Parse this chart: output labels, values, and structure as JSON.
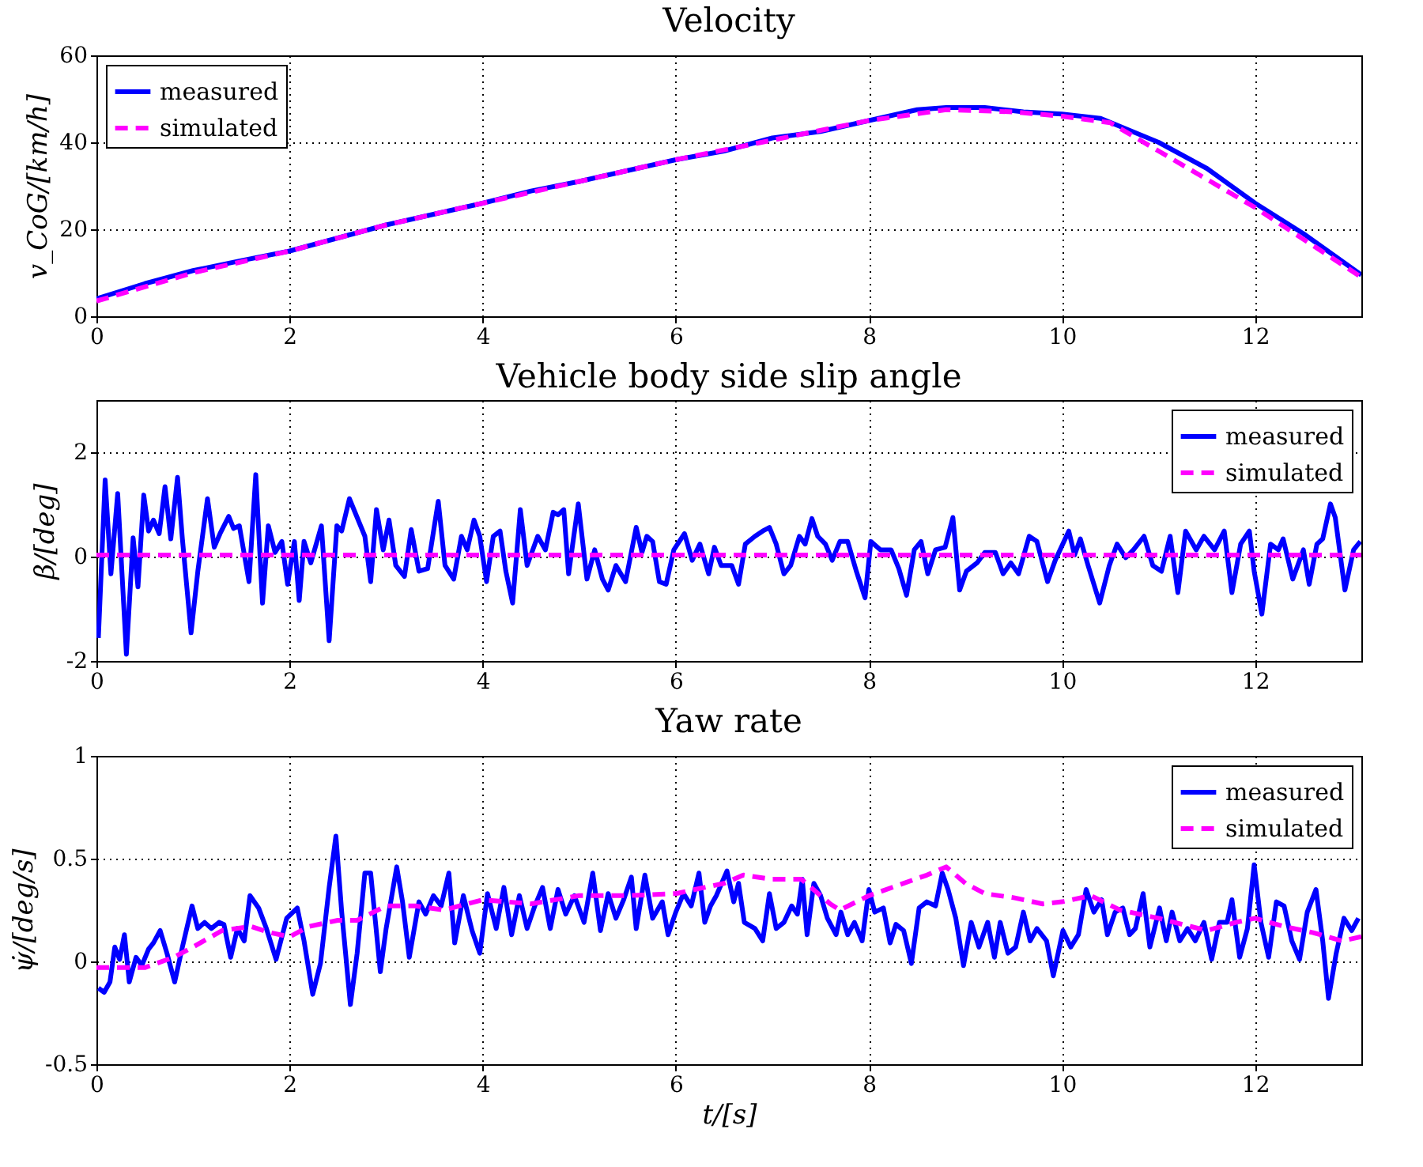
{
  "chart_data": [
    {
      "type": "line",
      "title": "Velocity",
      "ylabel": "v_CoG/[km/h]",
      "xlim": [
        0,
        13.1
      ],
      "xticks": [
        0,
        2,
        4,
        6,
        8,
        10,
        12
      ],
      "ylim": [
        0,
        60
      ],
      "yticks": [
        0,
        20,
        40,
        60
      ],
      "grid": true,
      "legend": "top left",
      "marker": "none",
      "series": [
        {
          "name": "measured",
          "color": "#0000ff",
          "line_style": "solid",
          "x": [
            0,
            0.5,
            1,
            1.5,
            2,
            2.5,
            3,
            3.5,
            4,
            4.5,
            5,
            5.5,
            6,
            6.5,
            7,
            7.5,
            8,
            8.5,
            8.8,
            9.2,
            9.6,
            10,
            10.4,
            11,
            11.5,
            12,
            12.5,
            13.1
          ],
          "values": [
            4,
            7.5,
            10.5,
            12.8,
            15,
            18,
            21,
            23.5,
            26,
            28.8,
            31,
            33.5,
            36,
            38,
            41,
            42.5,
            45,
            47.5,
            48,
            48,
            47,
            46.5,
            45.5,
            40,
            34,
            26,
            19,
            9.5
          ]
        },
        {
          "name": "simulated",
          "color": "#ff00ff",
          "line_style": "dashed",
          "x": [
            0,
            1,
            2,
            3,
            4,
            5,
            6,
            7,
            8,
            8.8,
            9.5,
            10,
            10.5,
            11,
            12,
            13.1
          ],
          "values": [
            3.5,
            10,
            15,
            21,
            26,
            31,
            36,
            40.5,
            45,
            47.5,
            47,
            46,
            44.5,
            38,
            25,
            9
          ]
        }
      ]
    },
    {
      "type": "line",
      "title": "Vehicle body side slip angle",
      "ylabel": "β/[deg]",
      "xlim": [
        0,
        13.1
      ],
      "xticks": [
        0,
        2,
        4,
        6,
        8,
        10,
        12
      ],
      "ylim": [
        -2,
        3
      ],
      "yticks": [
        -2,
        0,
        2
      ],
      "grid": true,
      "legend": "top right",
      "marker": "none",
      "series": [
        {
          "name": "measured",
          "color": "#0000ff",
          "line_style": "solid",
          "x": [
            0.02,
            0.09,
            0.15,
            0.22,
            0.31,
            0.38,
            0.43,
            0.49,
            0.54,
            0.59,
            0.65,
            0.71,
            0.77,
            0.84,
            0.89,
            0.98,
            1.05,
            1.15,
            1.22,
            1.28,
            1.37,
            1.42,
            1.48,
            1.58,
            1.65,
            1.72,
            1.78,
            1.85,
            1.92,
            1.98,
            2.05,
            2.1,
            2.15,
            2.22,
            2.33,
            2.41,
            2.49,
            2.54,
            2.62,
            2.7,
            2.78,
            2.84,
            2.9,
            2.97,
            3.03,
            3.1,
            3.19,
            3.26,
            3.34,
            3.43,
            3.54,
            3.61,
            3.7,
            3.78,
            3.84,
            3.91,
            3.97,
            4.04,
            4.11,
            4.18,
            4.24,
            4.31,
            4.39,
            4.46,
            4.57,
            4.65,
            4.73,
            4.78,
            4.84,
            4.89,
            4.99,
            5.08,
            5.16,
            5.24,
            5.3,
            5.38,
            5.48,
            5.59,
            5.65,
            5.7,
            5.76,
            5.83,
            5.9,
            5.98,
            6.09,
            6.17,
            6.25,
            6.34,
            6.4,
            6.47,
            6.58,
            6.65,
            6.72,
            6.82,
            6.9,
            6.97,
            7.04,
            7.12,
            7.19,
            7.28,
            7.34,
            7.41,
            7.47,
            7.55,
            7.62,
            7.7,
            7.78,
            7.87,
            7.96,
            8.02,
            8.12,
            8.23,
            8.31,
            8.39,
            8.47,
            8.54,
            8.61,
            8.69,
            8.79,
            8.87,
            8.94,
            9.01,
            9.12,
            9.2,
            9.31,
            9.39,
            9.47,
            9.55,
            9.66,
            9.74,
            9.85,
            9.93,
            10.07,
            10.13,
            10.19,
            10.27,
            10.39,
            10.49,
            10.57,
            10.66,
            10.74,
            10.85,
            10.94,
            11.03,
            11.12,
            11.2,
            11.28,
            11.39,
            11.47,
            11.58,
            11.68,
            11.76,
            11.85,
            11.94,
            11.99,
            12.07,
            12.16,
            12.24,
            12.29,
            12.39,
            12.5,
            12.56,
            12.64,
            12.7,
            12.78,
            12.83,
            12.93,
            13.02,
            13.09
          ],
          "values": [
            -1.56,
            1.47,
            -0.33,
            1.21,
            -1.87,
            0.36,
            -0.58,
            1.18,
            0.49,
            0.7,
            0.44,
            1.34,
            0.34,
            1.52,
            0.34,
            -1.46,
            -0.28,
            1.11,
            0.18,
            0.44,
            0.77,
            0.54,
            0.59,
            -0.48,
            1.57,
            -0.89,
            0.59,
            0.08,
            0.29,
            -0.53,
            0.29,
            -0.84,
            0.29,
            -0.12,
            0.59,
            -1.61,
            0.59,
            0.49,
            1.11,
            0.75,
            0.39,
            -0.48,
            0.9,
            0.13,
            0.7,
            -0.17,
            -0.38,
            0.52,
            -0.28,
            -0.23,
            1.06,
            -0.17,
            -0.43,
            0.39,
            0.13,
            0.7,
            0.39,
            -0.48,
            0.39,
            0.49,
            -0.28,
            -0.89,
            0.9,
            -0.17,
            0.39,
            0.13,
            0.85,
            0.8,
            0.9,
            -0.33,
            1.01,
            -0.43,
            0.13,
            -0.43,
            -0.64,
            -0.17,
            -0.48,
            0.56,
            0.08,
            0.39,
            0.29,
            -0.48,
            -0.53,
            0.13,
            0.44,
            -0.07,
            0.24,
            -0.33,
            0.18,
            -0.17,
            -0.17,
            -0.53,
            0.24,
            0.39,
            0.49,
            0.56,
            0.24,
            -0.33,
            -0.17,
            0.39,
            0.24,
            0.73,
            0.39,
            0.24,
            -0.07,
            0.29,
            0.29,
            -0.28,
            -0.79,
            0.29,
            0.13,
            0.13,
            -0.23,
            -0.74,
            0.13,
            0.29,
            -0.33,
            0.13,
            0.18,
            0.75,
            -0.64,
            -0.28,
            -0.12,
            0.08,
            0.08,
            -0.33,
            -0.12,
            -0.33,
            0.39,
            0.29,
            -0.48,
            -0.07,
            0.49,
            0.03,
            0.34,
            -0.17,
            -0.89,
            -0.17,
            0.24,
            -0.02,
            0.13,
            0.39,
            -0.17,
            -0.28,
            0.39,
            -0.69,
            0.49,
            0.13,
            0.39,
            0.13,
            0.49,
            -0.69,
            0.24,
            0.49,
            -0.28,
            -1.1,
            0.24,
            0.13,
            0.34,
            -0.43,
            0.13,
            -0.53,
            0.24,
            0.34,
            1.01,
            0.75,
            -0.64,
            0.13,
            0.29
          ]
        },
        {
          "name": "simulated",
          "color": "#ff00ff",
          "line_style": "dashed",
          "x": [
            0,
            13.1
          ],
          "values": [
            0.03,
            0.03
          ]
        }
      ]
    },
    {
      "type": "line",
      "title": "Yaw rate",
      "xlabel": "t/[s]",
      "ylabel": "ψ̇/[deg/s]",
      "xlim": [
        0,
        13.1
      ],
      "xticks": [
        0,
        2,
        4,
        6,
        8,
        10,
        12
      ],
      "ylim": [
        -0.5,
        1
      ],
      "yticks": [
        -0.5,
        0,
        0.5,
        1
      ],
      "grid": true,
      "legend": "top right",
      "marker": "none",
      "series": [
        {
          "name": "measured",
          "color": "#0000ff",
          "line_style": "solid",
          "x": [
            0.02,
            0.08,
            0.14,
            0.19,
            0.24,
            0.29,
            0.34,
            0.41,
            0.47,
            0.54,
            0.59,
            0.66,
            0.73,
            0.81,
            0.89,
            0.99,
            1.05,
            1.12,
            1.19,
            1.27,
            1.32,
            1.39,
            1.46,
            1.53,
            1.59,
            1.68,
            1.76,
            1.86,
            1.97,
            2.08,
            2.15,
            2.24,
            2.32,
            2.41,
            2.48,
            2.54,
            2.63,
            2.7,
            2.78,
            2.84,
            2.94,
            3.0,
            3.11,
            3.17,
            3.24,
            3.34,
            3.41,
            3.49,
            3.57,
            3.65,
            3.71,
            3.8,
            3.89,
            3.97,
            4.05,
            4.14,
            4.22,
            4.3,
            4.38,
            4.46,
            4.54,
            4.62,
            4.7,
            4.78,
            4.86,
            4.95,
            5.05,
            5.14,
            5.22,
            5.3,
            5.38,
            5.46,
            5.54,
            5.59,
            5.68,
            5.76,
            5.86,
            5.92,
            6.0,
            6.08,
            6.16,
            6.24,
            6.3,
            6.36,
            6.42,
            6.53,
            6.6,
            6.65,
            6.71,
            6.82,
            6.9,
            6.97,
            7.04,
            7.12,
            7.2,
            7.26,
            7.31,
            7.36,
            7.43,
            7.5,
            7.57,
            7.66,
            7.71,
            7.78,
            7.85,
            7.93,
            8.0,
            8.06,
            8.15,
            8.22,
            8.28,
            8.36,
            8.44,
            8.52,
            8.6,
            8.69,
            8.76,
            8.82,
            8.9,
            8.98,
            9.06,
            9.14,
            9.23,
            9.3,
            9.36,
            9.44,
            9.52,
            9.6,
            9.67,
            9.74,
            9.84,
            9.91,
            10.01,
            10.09,
            10.17,
            10.25,
            10.33,
            10.41,
            10.47,
            10.55,
            10.63,
            10.7,
            10.76,
            10.84,
            10.91,
            11.01,
            11.08,
            11.14,
            11.22,
            11.3,
            11.38,
            11.47,
            11.55,
            11.63,
            11.71,
            11.76,
            11.84,
            11.92,
            11.99,
            12.06,
            12.14,
            12.22,
            12.3,
            12.38,
            12.46,
            12.54,
            12.63,
            12.7,
            12.76,
            12.84,
            12.92,
            13.0,
            13.07
          ],
          "values": [
            -0.13,
            -0.15,
            -0.1,
            0.07,
            0.01,
            0.13,
            -0.1,
            0.02,
            -0.02,
            0.06,
            0.09,
            0.15,
            0.04,
            -0.1,
            0.07,
            0.27,
            0.16,
            0.19,
            0.16,
            0.19,
            0.18,
            0.02,
            0.16,
            0.1,
            0.32,
            0.26,
            0.16,
            0.01,
            0.21,
            0.26,
            0.1,
            -0.16,
            -0.01,
            0.36,
            0.61,
            0.24,
            -0.21,
            0.04,
            0.43,
            0.43,
            -0.05,
            0.16,
            0.46,
            0.29,
            0.02,
            0.29,
            0.23,
            0.32,
            0.27,
            0.43,
            0.09,
            0.32,
            0.15,
            0.04,
            0.33,
            0.16,
            0.36,
            0.13,
            0.32,
            0.16,
            0.27,
            0.36,
            0.16,
            0.35,
            0.23,
            0.32,
            0.19,
            0.43,
            0.15,
            0.33,
            0.21,
            0.3,
            0.41,
            0.16,
            0.42,
            0.21,
            0.29,
            0.13,
            0.24,
            0.33,
            0.27,
            0.43,
            0.19,
            0.27,
            0.32,
            0.44,
            0.29,
            0.38,
            0.19,
            0.16,
            0.1,
            0.33,
            0.16,
            0.19,
            0.27,
            0.23,
            0.4,
            0.13,
            0.38,
            0.32,
            0.21,
            0.13,
            0.24,
            0.13,
            0.19,
            0.1,
            0.35,
            0.24,
            0.26,
            0.09,
            0.18,
            0.15,
            -0.01,
            0.26,
            0.29,
            0.27,
            0.43,
            0.35,
            0.21,
            -0.02,
            0.19,
            0.07,
            0.19,
            0.02,
            0.19,
            0.04,
            0.07,
            0.24,
            0.1,
            0.16,
            0.1,
            -0.07,
            0.15,
            0.07,
            0.13,
            0.35,
            0.24,
            0.3,
            0.13,
            0.24,
            0.26,
            0.13,
            0.16,
            0.33,
            0.07,
            0.26,
            0.1,
            0.24,
            0.1,
            0.16,
            0.1,
            0.19,
            0.01,
            0.19,
            0.19,
            0.3,
            0.02,
            0.16,
            0.47,
            0.19,
            0.02,
            0.29,
            0.27,
            0.1,
            0.01,
            0.24,
            0.35,
            0.1,
            -0.18,
            0.04,
            0.21,
            0.15,
            0.21
          ]
        },
        {
          "name": "simulated",
          "color": "#ff00ff",
          "line_style": "dashed",
          "x": [
            0,
            0.5,
            0.8,
            1.0,
            1.3,
            1.6,
            1.8,
            2.0,
            2.2,
            2.5,
            2.7,
            3.0,
            3.3,
            3.6,
            4.0,
            4.5,
            5.0,
            5.5,
            6.0,
            6.5,
            6.7,
            7.0,
            7.3,
            7.6,
            7.7,
            8.0,
            8.3,
            8.6,
            8.8,
            9.0,
            9.2,
            9.5,
            9.8,
            10.0,
            10.3,
            10.6,
            11.0,
            11.5,
            11.8,
            12.0,
            12.3,
            12.6,
            12.9,
            13.1
          ],
          "values": [
            -0.03,
            -0.03,
            0.02,
            0.07,
            0.15,
            0.17,
            0.14,
            0.12,
            0.17,
            0.2,
            0.2,
            0.27,
            0.27,
            0.25,
            0.3,
            0.28,
            0.32,
            0.32,
            0.33,
            0.38,
            0.42,
            0.4,
            0.4,
            0.28,
            0.25,
            0.32,
            0.37,
            0.42,
            0.46,
            0.38,
            0.33,
            0.31,
            0.28,
            0.29,
            0.32,
            0.25,
            0.21,
            0.15,
            0.19,
            0.21,
            0.17,
            0.14,
            0.1,
            0.12
          ]
        }
      ]
    }
  ]
}
